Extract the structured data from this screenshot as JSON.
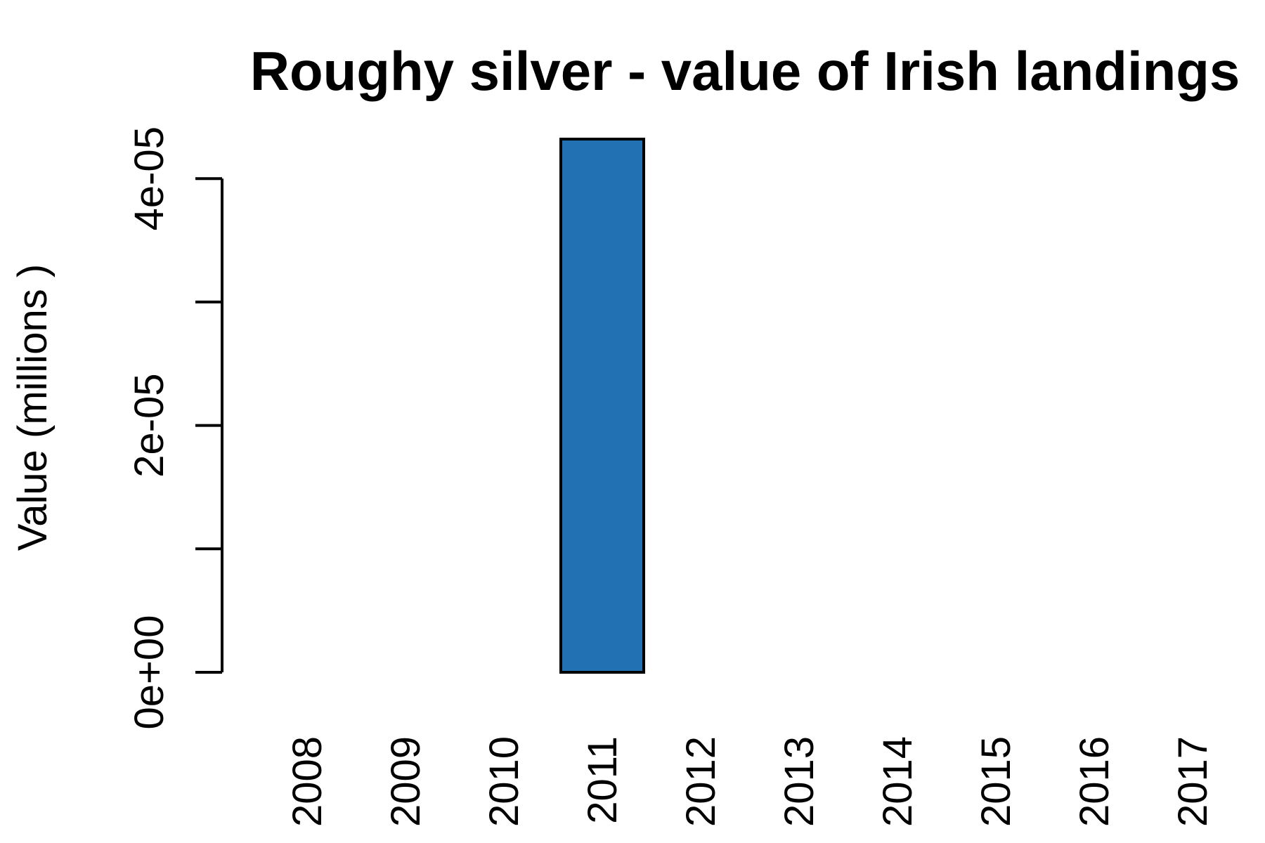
{
  "chart_data": {
    "type": "bar",
    "title": "Roughy silver - value of Irish landings",
    "xlabel": "",
    "ylabel": "Value (millions )",
    "categories": [
      "2008",
      "2009",
      "2010",
      "2011",
      "2012",
      "2013",
      "2014",
      "2015",
      "2016",
      "2017"
    ],
    "values": [
      0,
      0,
      0,
      4.32e-05,
      0,
      0,
      0,
      0,
      0,
      0
    ],
    "ylim": [
      0,
      4.32e-05
    ],
    "y_ticks": [
      0,
      1e-05,
      2e-05,
      3e-05,
      4e-05
    ],
    "y_tick_labels": [
      "0e+00",
      "",
      "2e-05",
      "",
      "4e-05"
    ],
    "bar_color": "#2271b3",
    "grid": false,
    "legend": "none"
  }
}
